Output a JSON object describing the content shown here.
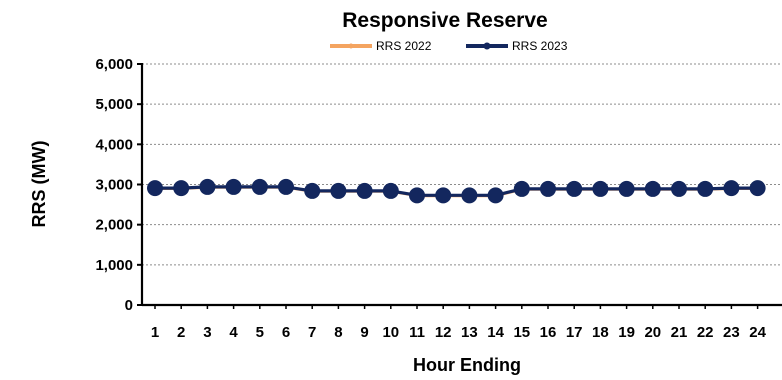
{
  "chart_data": {
    "type": "line",
    "title": "Responsive Reserve",
    "xlabel": "Hour Ending",
    "ylabel": "RRS (MW)",
    "categories": [
      "1",
      "2",
      "3",
      "4",
      "5",
      "6",
      "7",
      "8",
      "9",
      "10",
      "11",
      "12",
      "13",
      "14",
      "15",
      "16",
      "17",
      "18",
      "19",
      "20",
      "21",
      "22",
      "23",
      "24"
    ],
    "ylim": [
      0,
      6000
    ],
    "yticks": [
      "0",
      "1,000",
      "2,000",
      "3,000",
      "4,000",
      "5,000",
      "6,000"
    ],
    "grid": true,
    "legend_position": "top",
    "series": [
      {
        "name": "RRS 2022",
        "color": "#f4a460",
        "values": [
          2900,
          2900,
          2930,
          2930,
          2930,
          2930,
          2830,
          2830,
          2830,
          2830,
          2720,
          2720,
          2720,
          2720,
          2880,
          2880,
          2880,
          2880,
          2880,
          2880,
          2880,
          2880,
          2900,
          2900
        ]
      },
      {
        "name": "RRS 2023",
        "color": "#13275e",
        "values": [
          2910,
          2910,
          2940,
          2940,
          2940,
          2940,
          2840,
          2840,
          2840,
          2840,
          2730,
          2730,
          2730,
          2730,
          2890,
          2890,
          2890,
          2890,
          2890,
          2890,
          2890,
          2890,
          2910,
          2910
        ]
      }
    ]
  }
}
